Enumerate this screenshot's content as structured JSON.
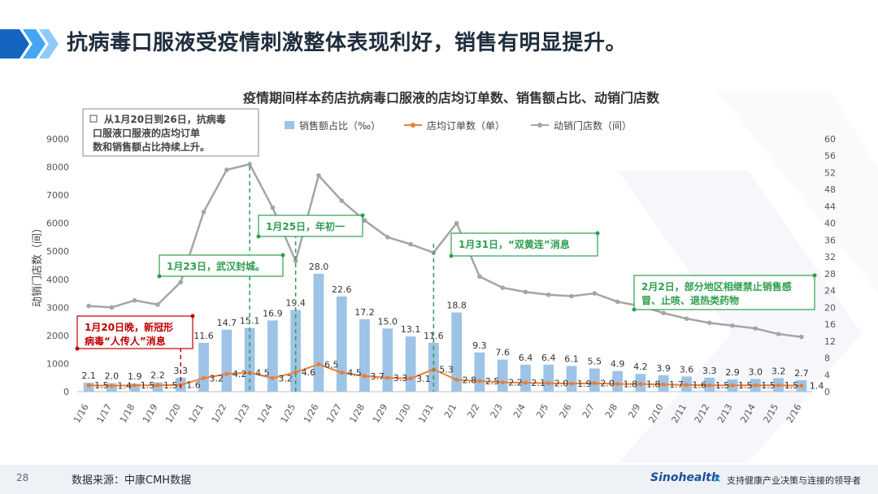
{
  "slide": {
    "title": "抗病毒口服液受疫情刺激整体表现利好，销售有明显提升。",
    "page_number": "28",
    "source": "数据来源：中康CMH数据",
    "brand": "Sinohealth",
    "brand_mark": "✕",
    "slogan": "支持健康产业决策与连接的领导者",
    "colors": {
      "bar": "#9dc3e6",
      "orders": "#ed7d31",
      "stores": "#a5a5a5",
      "title": "#1f2d3d",
      "note_green": "#2e9e4f",
      "note_red": "#c00000"
    }
  },
  "chart_data": {
    "type": "bar",
    "title": "疫情期间样本药店抗病毒口服液的店均订单数、销售额占比、动销门店数",
    "xlabel": "",
    "ylabel": "动销门店数（间）",
    "categories": [
      "1/16",
      "1/17",
      "1/18",
      "1/19",
      "1/20",
      "1/21",
      "1/22",
      "1/23",
      "1/24",
      "1/25",
      "1/26",
      "1/27",
      "1/28",
      "1/29",
      "1/30",
      "1/31",
      "2/1",
      "2/2",
      "2/3",
      "2/4",
      "2/5",
      "2/6",
      "2/7",
      "2/8",
      "2/9",
      "2/10",
      "2/11",
      "2/12",
      "2/13",
      "2/14",
      "2/15",
      "2/16"
    ],
    "left_axis": {
      "min": 0,
      "max": 9000,
      "ticks": [
        "0",
        "1000",
        "2000",
        "3000",
        "4000",
        "5000",
        "6000",
        "7000",
        "8000",
        "9000"
      ]
    },
    "right_axis": {
      "min": 0,
      "max": 60,
      "ticks": [
        "0",
        "4",
        "8",
        "12",
        "16",
        "20",
        "24",
        "28",
        "32",
        "36",
        "40",
        "44",
        "48",
        "52",
        "56",
        "60"
      ]
    },
    "legend_position": "top-right",
    "grid": false,
    "series": [
      {
        "name": "销售额占比（‰）",
        "type": "bar",
        "axis": "right",
        "values": [
          2.1,
          2.0,
          1.9,
          2.2,
          3.3,
          11.6,
          14.7,
          15.1,
          16.9,
          19.4,
          28.0,
          22.6,
          17.2,
          15.0,
          13.1,
          11.6,
          18.8,
          9.3,
          7.6,
          6.4,
          6.4,
          6.1,
          5.5,
          4.9,
          4.2,
          3.9,
          3.6,
          3.3,
          2.9,
          3.0,
          3.2,
          2.7
        ],
        "labels": [
          "2.1",
          "2.0",
          "1.9",
          "2.2",
          "3.3",
          "11.6",
          "14.7",
          "15.1",
          "16.9",
          "19.4",
          "28.0",
          "22.6",
          "17.2",
          "15.0",
          "13.1",
          "11.6",
          "18.8",
          "9.3",
          "7.6",
          "6.4",
          "6.4",
          "6.1",
          "5.5",
          "4.9",
          "4.2",
          "3.9",
          "3.6",
          "3.3",
          "2.9",
          "3.0",
          "3.2",
          "2.7"
        ]
      },
      {
        "name": "店均订单数（单）",
        "type": "line",
        "axis": "right",
        "values": [
          1.5,
          1.4,
          1.5,
          1.5,
          1.6,
          3.2,
          4.2,
          4.5,
          3.2,
          4.6,
          6.5,
          4.5,
          3.7,
          3.3,
          3.1,
          5.3,
          2.8,
          2.5,
          2.2,
          2.1,
          2.0,
          1.9,
          2.0,
          1.8,
          1.8,
          1.7,
          1.6,
          1.5,
          1.5,
          1.5,
          1.5,
          1.4
        ],
        "labels": [
          "1.5",
          "1.4",
          "1.5",
          "1.5",
          "1.6",
          "3.2",
          "4.2",
          "4.5",
          "3.2",
          "4.6",
          "6.5",
          "4.5",
          "3.7",
          "3.3",
          "3.1",
          "5.3",
          "2.8",
          "2.5",
          "2.2",
          "2.1",
          "2.0",
          "1.9",
          "2.0",
          "1.8",
          "1.8",
          "1.7",
          "1.6",
          "1.5",
          "1.5",
          "1.5",
          "1.5",
          "1.4"
        ]
      },
      {
        "name": "动销门店数（间）",
        "type": "line",
        "axis": "left",
        "values": [
          3050,
          3000,
          3250,
          3100,
          3900,
          6400,
          7900,
          8100,
          6550,
          4650,
          7700,
          6800,
          6100,
          5500,
          5250,
          4950,
          6000,
          4100,
          3700,
          3550,
          3450,
          3400,
          3500,
          3200,
          3050,
          2800,
          2600,
          2450,
          2350,
          2250,
          2050,
          1950
        ]
      }
    ],
    "annotations": [
      {
        "id": "note-summary",
        "text": [
          "从1月20日到26日，抗病毒",
          "口服液口服液的店均订单",
          "数和销售额占比持续上升。"
        ],
        "style": "boxed-gray"
      },
      {
        "id": "note-jan20",
        "text": [
          "1月20日晚，新冠形",
          "病毒“人传人”消息"
        ],
        "style": "red",
        "category": "1/20"
      },
      {
        "id": "note-jan23",
        "text": [
          "1月23日，武汉封城。"
        ],
        "style": "green",
        "category": "1/23"
      },
      {
        "id": "note-jan25",
        "text": [
          "1月25日，年初一"
        ],
        "style": "green",
        "category": "1/25"
      },
      {
        "id": "note-jan31",
        "text": [
          "1月31日，“双黄连”消息"
        ],
        "style": "green",
        "category": "1/31"
      },
      {
        "id": "note-feb2",
        "text": [
          "2月2日，部分地区相继禁止销售感",
          "冒、止咳、退热类药物"
        ],
        "style": "green",
        "category": "2/2"
      }
    ]
  }
}
